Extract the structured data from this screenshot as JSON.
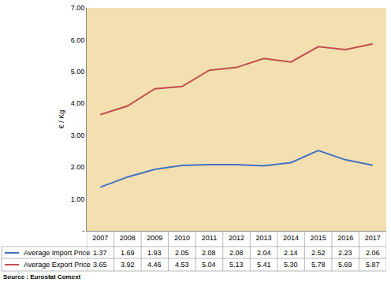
{
  "chart_data": {
    "type": "line",
    "y_label": "€ / Kg",
    "source": "Source : Eurostat Comext",
    "categories": [
      "2007",
      "2008",
      "2009",
      "2010",
      "2011",
      "2012",
      "2013",
      "2014",
      "2015",
      "2016",
      "2017"
    ],
    "series": [
      {
        "name": "Average Import Price",
        "color": "#4472c4",
        "values": [
          1.37,
          1.69,
          1.93,
          2.05,
          2.08,
          2.08,
          2.04,
          2.14,
          2.52,
          2.23,
          2.06
        ],
        "value_labels": [
          "1.37",
          "1.69",
          "1.93",
          "2.05",
          "2.08",
          "2.08",
          "2.04",
          "2.14",
          "2.52",
          "2.23",
          "2.06"
        ]
      },
      {
        "name": "Average Export Price",
        "color": "#c0504d",
        "values": [
          3.65,
          3.92,
          4.46,
          4.53,
          5.04,
          5.13,
          5.41,
          5.3,
          5.78,
          5.69,
          5.87
        ],
        "value_labels": [
          "3.65",
          "3.92",
          "4.46",
          "4.53",
          "5.04",
          "5.13",
          "5.41",
          "5.30",
          "5.78",
          "5.69",
          "5.87"
        ]
      }
    ],
    "ylim": [
      0,
      7
    ],
    "yticks": [
      {
        "value": 0,
        "label": "-"
      },
      {
        "value": 1,
        "label": "1.00"
      },
      {
        "value": 2,
        "label": "2.00"
      },
      {
        "value": 3,
        "label": "3.00"
      },
      {
        "value": 4,
        "label": "4.00"
      },
      {
        "value": 5,
        "label": "5.00"
      },
      {
        "value": 6,
        "label": "6.00"
      },
      {
        "value": 7,
        "label": "7.00"
      }
    ],
    "grid": false
  }
}
